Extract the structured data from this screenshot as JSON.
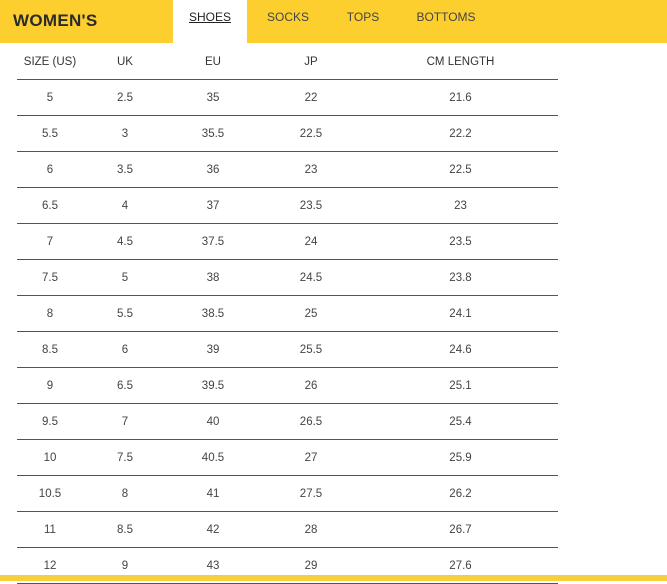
{
  "header": {
    "title": "WOMEN'S",
    "tabs": [
      {
        "label": "SHOES",
        "active": true
      },
      {
        "label": "SOCKS",
        "active": false
      },
      {
        "label": "TOPS",
        "active": false
      },
      {
        "label": "BOTTOMS",
        "active": false
      }
    ],
    "accent_color": "#fccf2f"
  },
  "table": {
    "columns": [
      "SIZE (US)",
      "UK",
      "EU",
      "JP",
      "CM LENGTH"
    ],
    "rows": [
      [
        "5",
        "2.5",
        "35",
        "22",
        "21.6"
      ],
      [
        "5.5",
        "3",
        "35.5",
        "22.5",
        "22.2"
      ],
      [
        "6",
        "3.5",
        "36",
        "23",
        "22.5"
      ],
      [
        "6.5",
        "4",
        "37",
        "23.5",
        "23"
      ],
      [
        "7",
        "4.5",
        "37.5",
        "24",
        "23.5"
      ],
      [
        "7.5",
        "5",
        "38",
        "24.5",
        "23.8"
      ],
      [
        "8",
        "5.5",
        "38.5",
        "25",
        "24.1"
      ],
      [
        "8.5",
        "6",
        "39",
        "25.5",
        "24.6"
      ],
      [
        "9",
        "6.5",
        "39.5",
        "26",
        "25.1"
      ],
      [
        "9.5",
        "7",
        "40",
        "26.5",
        "25.4"
      ],
      [
        "10",
        "7.5",
        "40.5",
        "27",
        "25.9"
      ],
      [
        "10.5",
        "8",
        "41",
        "27.5",
        "26.2"
      ],
      [
        "11",
        "8.5",
        "42",
        "28",
        "26.7"
      ],
      [
        "12",
        "9",
        "43",
        "29",
        "27.6"
      ]
    ]
  }
}
